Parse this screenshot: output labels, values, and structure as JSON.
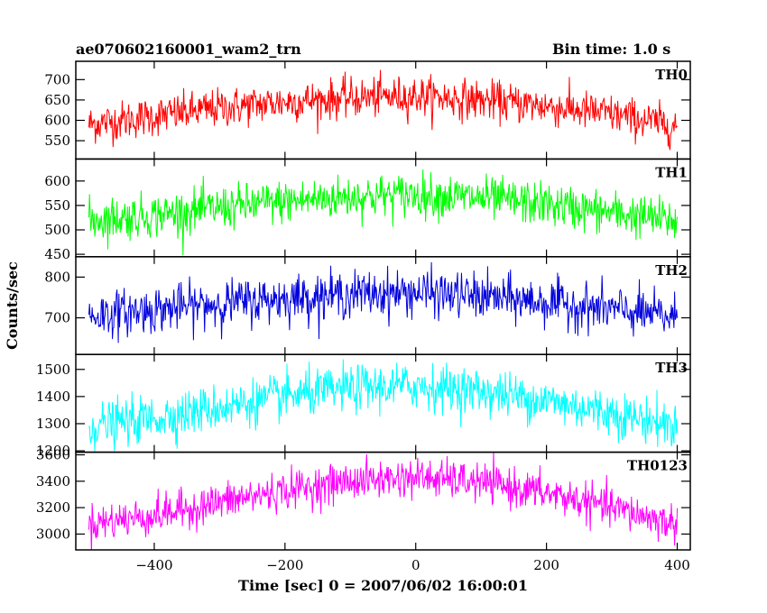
{
  "header": {
    "title": "ae070602160001_wam2_trn",
    "bin_time": "Bin time: 1.0 s"
  },
  "chart_data": {
    "type": "line",
    "title": "ae070602160001_wam2_trn",
    "subtitle": "Bin time: 1.0 s",
    "xlabel": "Time [sec] 0 = 2007/06/02 16:00:01",
    "ylabel": "Counts/sec",
    "xlim": [
      -520,
      420
    ],
    "x_ticks": [
      -400,
      -200,
      0,
      200,
      400
    ],
    "x_step": 1,
    "x_range": [
      -500,
      400
    ],
    "grid": false,
    "panels": [
      {
        "name": "TH0",
        "color": "#ff0000",
        "ylim": [
          505,
          745
        ],
        "y_ticks": [
          550,
          600,
          650,
          700
        ],
        "trend_points": [
          [
            -500,
            590
          ],
          [
            -400,
            610
          ],
          [
            -300,
            630
          ],
          [
            -200,
            645
          ],
          [
            -100,
            655
          ],
          [
            0,
            660
          ],
          [
            100,
            650
          ],
          [
            200,
            635
          ],
          [
            300,
            615
          ],
          [
            400,
            585
          ]
        ],
        "noise_sd": 24
      },
      {
        "name": "TH1",
        "color": "#00ff00",
        "ylim": [
          445,
          645
        ],
        "y_ticks": [
          450,
          500,
          550,
          600
        ],
        "trend_points": [
          [
            -500,
            520
          ],
          [
            -400,
            530
          ],
          [
            -300,
            545
          ],
          [
            -200,
            558
          ],
          [
            -100,
            568
          ],
          [
            0,
            572
          ],
          [
            100,
            565
          ],
          [
            200,
            552
          ],
          [
            300,
            535
          ],
          [
            400,
            518
          ]
        ],
        "noise_sd": 22
      },
      {
        "name": "TH2",
        "color": "#0000dd",
        "ylim": [
          610,
          850
        ],
        "y_ticks": [
          700,
          800
        ],
        "trend_points": [
          [
            -500,
            705
          ],
          [
            -400,
            720
          ],
          [
            -300,
            735
          ],
          [
            -200,
            748
          ],
          [
            -100,
            758
          ],
          [
            0,
            762
          ],
          [
            100,
            752
          ],
          [
            200,
            738
          ],
          [
            300,
            720
          ],
          [
            400,
            700
          ]
        ],
        "noise_sd": 28
      },
      {
        "name": "TH3",
        "color": "#00ffff",
        "ylim": [
          1195,
          1555
        ],
        "y_ticks": [
          1200,
          1300,
          1400,
          1500
        ],
        "trend_points": [
          [
            -500,
            1290
          ],
          [
            -400,
            1320
          ],
          [
            -300,
            1360
          ],
          [
            -200,
            1400
          ],
          [
            -100,
            1430
          ],
          [
            0,
            1440
          ],
          [
            100,
            1420
          ],
          [
            200,
            1385
          ],
          [
            300,
            1340
          ],
          [
            400,
            1290
          ]
        ],
        "noise_sd": 42
      },
      {
        "name": "TH0123",
        "color": "#ff00ff",
        "ylim": [
          2880,
          3620
        ],
        "y_ticks": [
          3000,
          3200,
          3400,
          3600
        ],
        "trend_points": [
          [
            -500,
            3080
          ],
          [
            -400,
            3140
          ],
          [
            -300,
            3240
          ],
          [
            -200,
            3330
          ],
          [
            -100,
            3400
          ],
          [
            0,
            3430
          ],
          [
            100,
            3390
          ],
          [
            200,
            3310
          ],
          [
            300,
            3200
          ],
          [
            400,
            3070
          ]
        ],
        "noise_sd": 72
      }
    ]
  }
}
